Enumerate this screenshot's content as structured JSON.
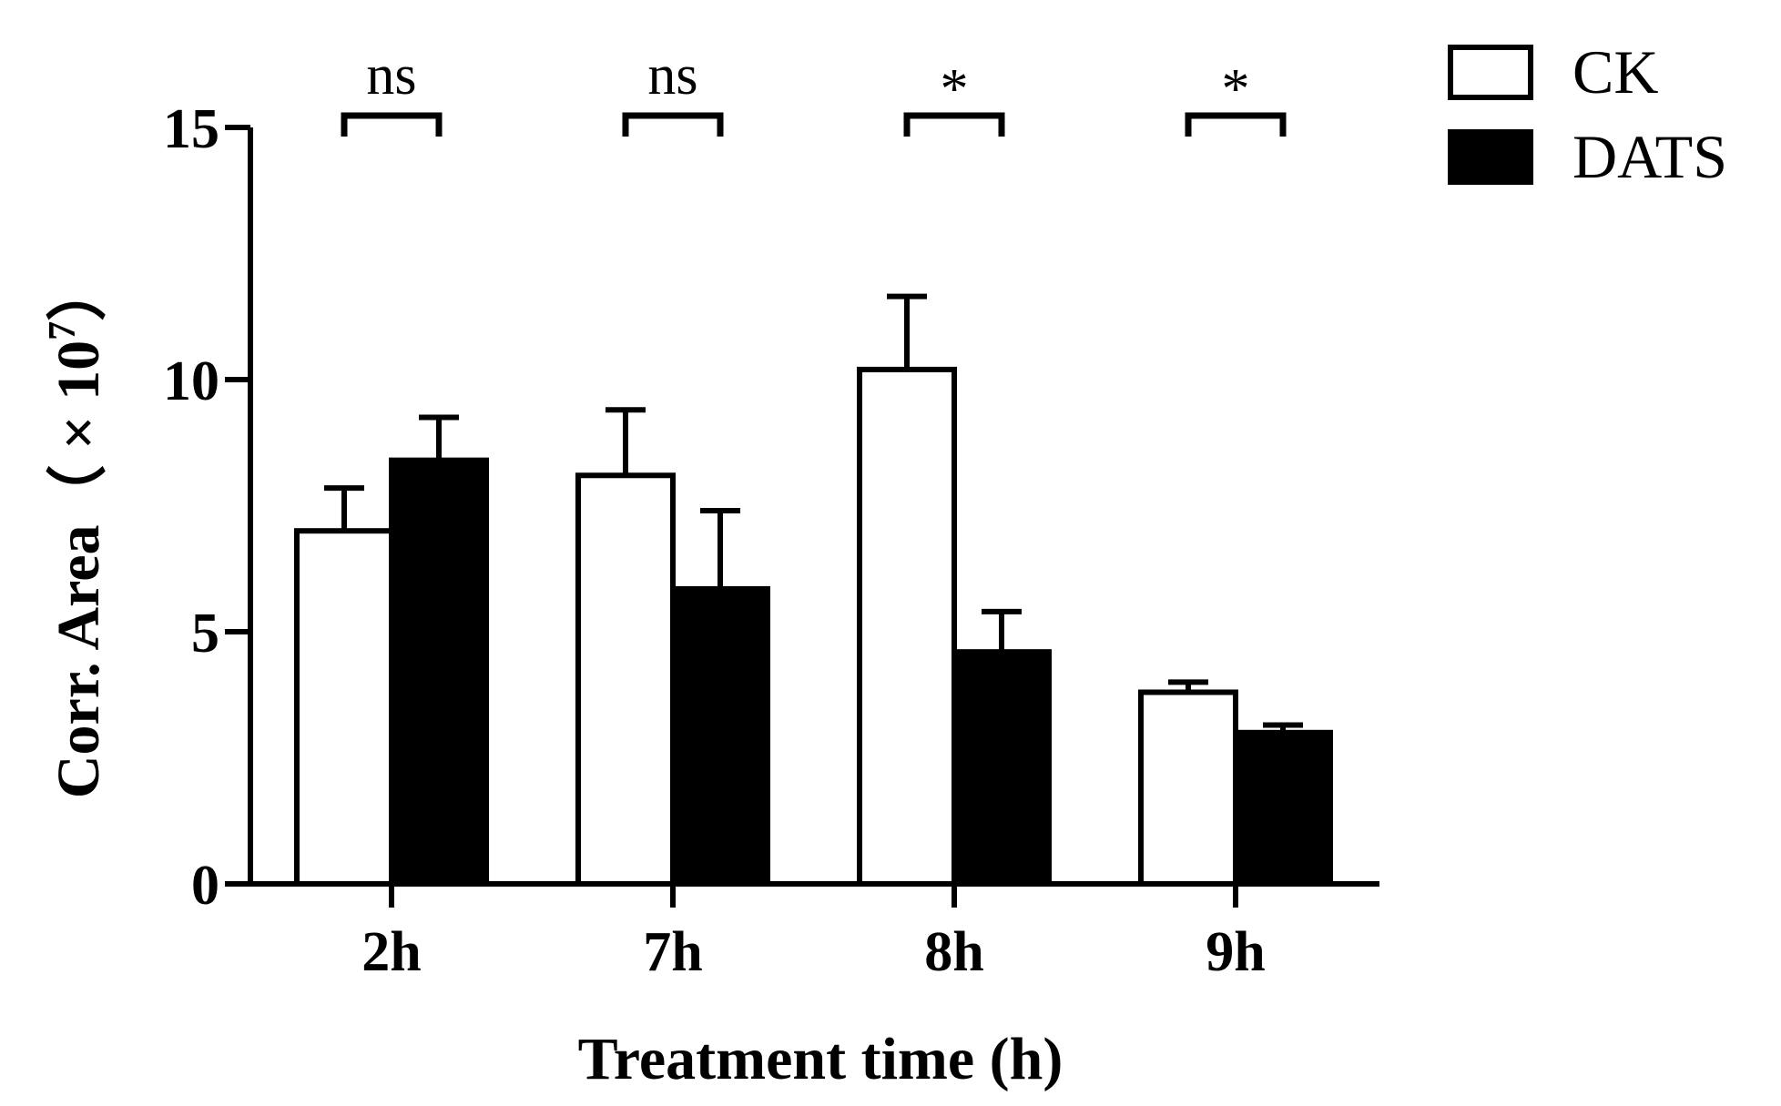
{
  "chart_data": {
    "type": "bar",
    "title": "",
    "xlabel": "Treatment time (h)",
    "ylabel": "Corr. Area（ × 10",
    "ylabel_superscript": "7",
    "ylabel_suffix": "）",
    "ylim": [
      0,
      15
    ],
    "yticks": [
      "0",
      "5",
      "10",
      "15"
    ],
    "categories": [
      "2h",
      "7h",
      "8h",
      "9h"
    ],
    "series": [
      {
        "name": "CK",
        "fill": "#ffffff",
        "values": [
          7.0,
          8.1,
          10.2,
          3.8
        ],
        "errors": [
          0.85,
          1.3,
          1.45,
          0.2
        ]
      },
      {
        "name": "DATS",
        "fill": "#000000",
        "values": [
          8.4,
          5.85,
          4.6,
          3.0
        ],
        "errors": [
          0.85,
          1.55,
          0.8,
          0.15
        ]
      }
    ],
    "significance": [
      "ns",
      "ns",
      "*",
      "*"
    ],
    "legend_position": "top-right",
    "grid": false
  }
}
